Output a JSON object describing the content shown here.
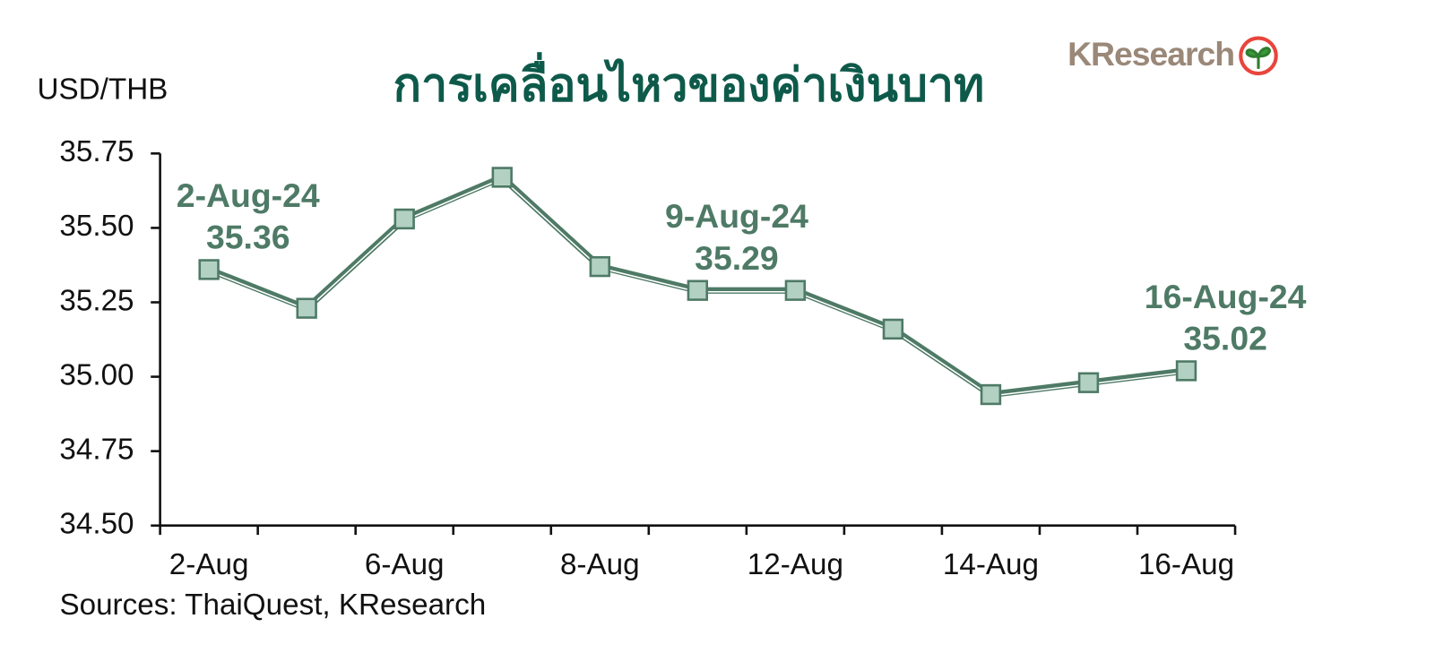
{
  "chart_data": {
    "type": "line",
    "title": "การเคลื่อนไหวของค่าเงินบาท",
    "y_label": "USD/THB",
    "source": "Sources: ThaiQuest, KResearch",
    "logo": "KResearch",
    "categories": [
      "2-Aug",
      null,
      "6-Aug",
      null,
      "8-Aug",
      null,
      "12-Aug",
      null,
      "14-Aug",
      null,
      "16-Aug"
    ],
    "series": [
      {
        "name": "USD/THB",
        "color": "#4e7a66",
        "values": [
          35.36,
          35.23,
          35.53,
          35.67,
          35.37,
          35.29,
          35.29,
          35.16,
          34.94,
          34.98,
          35.02
        ],
        "date_labels": [
          "2-Aug-24",
          null,
          null,
          null,
          null,
          "9-Aug-24",
          null,
          null,
          null,
          null,
          "16-Aug-24"
        ],
        "value_labels": [
          "35.36",
          null,
          null,
          null,
          null,
          "35.29",
          null,
          null,
          null,
          null,
          "35.02"
        ]
      }
    ],
    "ylim": [
      34.5,
      35.75
    ],
    "yticks": [
      {
        "value": 34.5,
        "label": "34.50"
      },
      {
        "value": 34.75,
        "label": "34.75"
      },
      {
        "value": 35,
        "label": "35.00"
      },
      {
        "value": 35.25,
        "label": "35.25"
      },
      {
        "value": 35.5,
        "label": "35.50"
      },
      {
        "value": 35.75,
        "label": "35.75"
      }
    ],
    "grid": false
  }
}
